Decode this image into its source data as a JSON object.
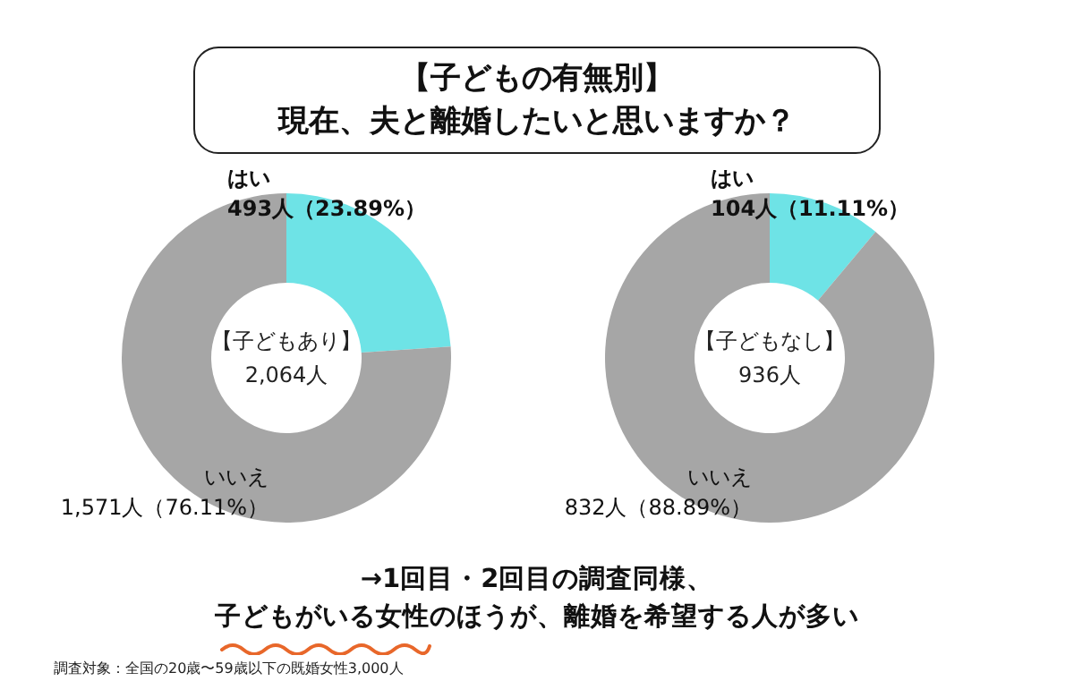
{
  "chart_data": [
    {
      "type": "donut",
      "title": "【子どもの有無別】",
      "subtitle": "現在、夫と離婚したいと思いますか？",
      "categories": [
        "はい",
        "いいえ"
      ],
      "values": [
        493,
        1571
      ],
      "colors": [
        "#6ee3e6",
        "#a6a6a6"
      ],
      "value_labels": [
        "493人（23.89%）",
        "1,571人（76.11%）"
      ],
      "annotations": [
        "【子どもあり】",
        "2,064人"
      ]
    },
    {
      "type": "donut",
      "categories": [
        "はい",
        "いいえ"
      ],
      "values": [
        104,
        832
      ],
      "colors": [
        "#6ee3e6",
        "#a6a6a6"
      ],
      "value_labels": [
        "104人（11.11%）",
        "832人（88.89%）"
      ],
      "annotations": [
        "【子どもなし】",
        "936人",
        "→1回目・2回目の調査同様、",
        "子どもがいる女性のほうが、離婚を希望する人が多い",
        "調査対象：全国の20歳〜59歳以下の既婚女性3,000人"
      ]
    }
  ]
}
